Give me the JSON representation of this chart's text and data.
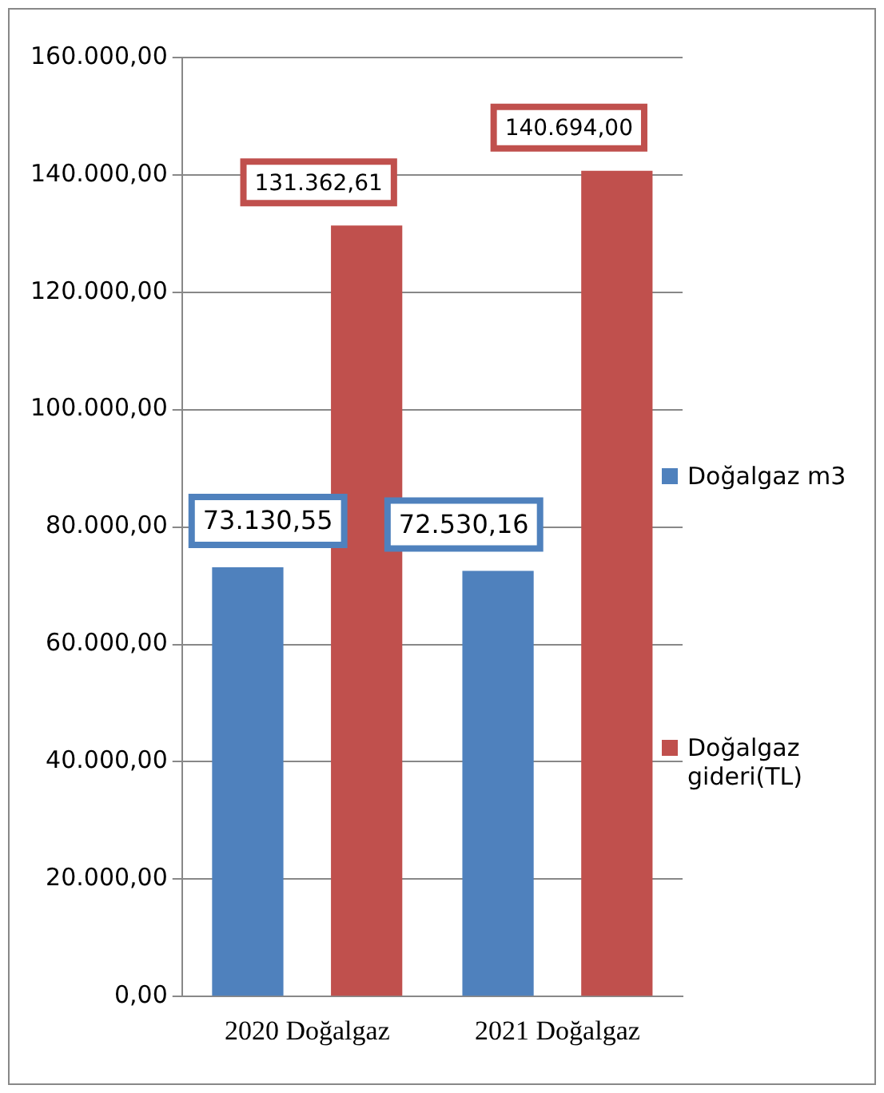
{
  "chart_data": {
    "type": "bar",
    "categories": [
      "2020 Doğalgaz",
      "2021 Doğalgaz"
    ],
    "series": [
      {
        "name": "Doğalgaz m3",
        "color": "#4f81bd",
        "values": [
          73130.55,
          72530.16
        ],
        "value_labels": [
          "73.130,55",
          "72.530,16"
        ]
      },
      {
        "name": "Doğalgaz gideri(TL)",
        "color": "#c0504d",
        "values": [
          131362.61,
          140694
        ],
        "value_labels": [
          "131.362,61",
          "140.694,00"
        ]
      }
    ],
    "ylim": [
      0,
      160000
    ],
    "yticks": [
      {
        "value": 0,
        "label": "0,00"
      },
      {
        "value": 20000,
        "label": "20.000,00"
      },
      {
        "value": 40000,
        "label": "40.000,00"
      },
      {
        "value": 60000,
        "label": "60.000,00"
      },
      {
        "value": 80000,
        "label": "80.000,00"
      },
      {
        "value": 100000,
        "label": "100.000,00"
      },
      {
        "value": 120000,
        "label": "120.000,00"
      },
      {
        "value": 140000,
        "label": "140.000,00"
      },
      {
        "value": 160000,
        "label": "160.000,00"
      }
    ],
    "grid": "y",
    "legend": "right"
  }
}
